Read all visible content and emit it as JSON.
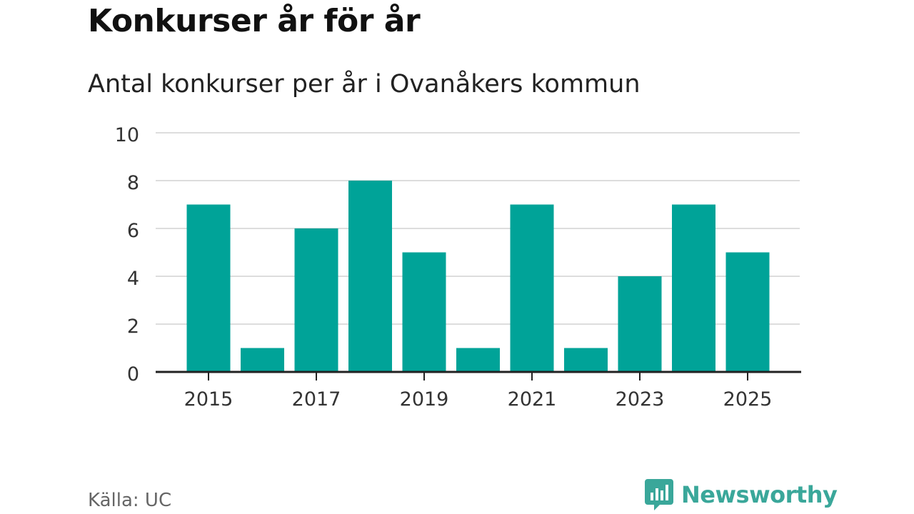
{
  "title": "Konkurser år för år",
  "subtitle": "Antal konkurser per år i Ovanåkers kommun",
  "source": "Källa: UC",
  "brand": {
    "name": "Newsworthy",
    "icon": "newsworthy-logo-icon"
  },
  "colors": {
    "bar": "#00a398",
    "grid": "#dddddd",
    "axis": "#222222",
    "brand": "#3aa79a"
  },
  "chart_data": {
    "type": "bar",
    "categories": [
      "2015",
      "2016",
      "2017",
      "2018",
      "2019",
      "2020",
      "2021",
      "2022",
      "2023",
      "2024",
      "2025"
    ],
    "values": [
      7,
      1,
      6,
      8,
      5,
      1,
      7,
      1,
      4,
      7,
      5
    ],
    "x_tick_labels": [
      "2015",
      "2017",
      "2019",
      "2021",
      "2023",
      "2025"
    ],
    "y_ticks": [
      0,
      2,
      4,
      6,
      8,
      10
    ],
    "ylim": [
      0,
      10
    ],
    "grid": true
  }
}
